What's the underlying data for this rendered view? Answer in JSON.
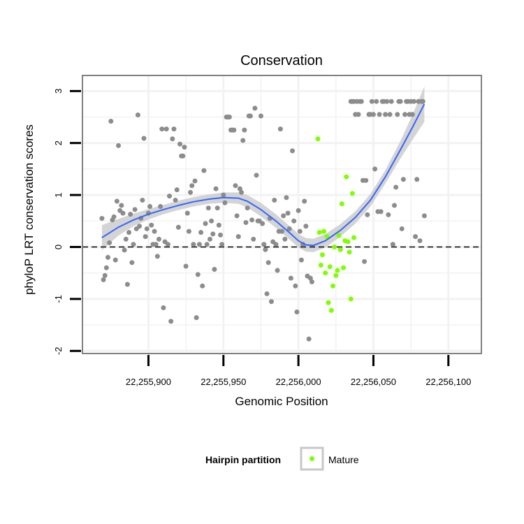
{
  "chart_data": {
    "type": "scatter",
    "title": "Conservation",
    "xlabel": "Genomic Position",
    "ylabel": "phyloP LRT conservation scores",
    "xlim": [
      22255856,
      22256122
    ],
    "ylim": [
      -2.05,
      3.3
    ],
    "x_ticks": [
      22255900,
      22255950,
      22256000,
      22256050,
      22256100
    ],
    "x_tick_labels": [
      "22,255,900",
      "22,255,950",
      "22,256,000",
      "22,256,050",
      "22,256,100"
    ],
    "y_ticks": [
      -2,
      -1,
      0,
      1,
      2,
      3
    ],
    "y_tick_labels": [
      "-2",
      "-1",
      "0",
      "1",
      "2",
      "3"
    ],
    "reference_line": {
      "y": 0,
      "style": "dashed",
      "color": "#000000"
    },
    "grid": true,
    "legend": {
      "title": "Hairpin partition",
      "position": "bottom",
      "entries": [
        {
          "label": "Mature",
          "color": "#80ff00"
        }
      ]
    },
    "colors": {
      "other_points": "#8c8c8c",
      "mature_points": "#80ff00",
      "smooth_line": "#3366ff",
      "confidence_band": "#cccccc",
      "panel_border": "#808080",
      "grid": "#f2f2f2"
    },
    "series": [
      {
        "partition": "other",
        "points": [
          [
            22255869,
            0.55
          ],
          [
            22255870,
            -0.63
          ],
          [
            22255871,
            -0.55
          ],
          [
            22255872,
            -0.4
          ],
          [
            22255873,
            -0.2
          ],
          [
            22255874,
            0.08
          ],
          [
            22255875,
            2.42
          ],
          [
            22255876,
            0.52
          ],
          [
            22255877,
            0.58
          ],
          [
            22255878,
            -0.25
          ],
          [
            22255879,
            0.88
          ],
          [
            22255880,
            1.95
          ],
          [
            22255881,
            0.7
          ],
          [
            22255882,
            0.8
          ],
          [
            22255883,
            0.65
          ],
          [
            22255884,
            -0.06
          ],
          [
            22255885,
            0.15
          ],
          [
            22255886,
            -0.72
          ],
          [
            22255887,
            0.28
          ],
          [
            22255888,
            0.63
          ],
          [
            22255889,
            -0.3
          ],
          [
            22255890,
            0.05
          ],
          [
            22255891,
            0.72
          ],
          [
            22255892,
            0.35
          ],
          [
            22255893,
            2.54
          ],
          [
            22255894,
            0.4
          ],
          [
            22255895,
            0.55
          ],
          [
            22255896,
            0.9
          ],
          [
            22255897,
            2.09
          ],
          [
            22255898,
            0.2
          ],
          [
            22255899,
            0.35
          ],
          [
            22255900,
            0.65
          ],
          [
            22255901,
            0.78
          ],
          [
            22255902,
            0.42
          ],
          [
            22255903,
            0.05
          ],
          [
            22255904,
            0.3
          ],
          [
            22255905,
            0.05
          ],
          [
            22255906,
            -0.18
          ],
          [
            22255907,
            0.15
          ],
          [
            22255908,
            0.78
          ],
          [
            22255909,
            2.27
          ],
          [
            22255910,
            -1.17
          ],
          [
            22255911,
            0.1
          ],
          [
            22255912,
            2.27
          ],
          [
            22255913,
            0.05
          ],
          [
            22255914,
            0.98
          ],
          [
            22255915,
            -1.43
          ],
          [
            22255916,
            2.08
          ],
          [
            22255917,
            2.27
          ],
          [
            22255918,
            0.9
          ],
          [
            22255919,
            1.1
          ],
          [
            22255920,
            0.38
          ],
          [
            22255921,
            1.98
          ],
          [
            22255922,
            1.75
          ],
          [
            22255923,
            1.75
          ],
          [
            22255924,
            1.92
          ],
          [
            22255925,
            -0.37
          ],
          [
            22255926,
            0.65
          ],
          [
            22255927,
            0.3
          ],
          [
            22255928,
            1.05
          ],
          [
            22255929,
            1.18
          ],
          [
            22255930,
            0.05
          ],
          [
            22255931,
            1.27
          ],
          [
            22255932,
            -1.36
          ],
          [
            22255933,
            -0.53
          ],
          [
            22255934,
            0.05
          ],
          [
            22255935,
            0.28
          ],
          [
            22255936,
            -0.75
          ],
          [
            22255937,
            1.47
          ],
          [
            22255938,
            0.45
          ],
          [
            22255939,
            0.05
          ],
          [
            22255940,
            0.75
          ],
          [
            22255941,
            0.15
          ],
          [
            22255942,
            0.5
          ],
          [
            22255943,
            0.25
          ],
          [
            22255944,
            -0.43
          ],
          [
            22255945,
            1.12
          ],
          [
            22255946,
            0.75
          ],
          [
            22255947,
            0.42
          ],
          [
            22255948,
            0.23
          ],
          [
            22255949,
            0.05
          ],
          [
            22255950,
            1.0
          ],
          [
            22255951,
            0.85
          ],
          [
            22255952,
            2.5
          ],
          [
            22255953,
            2.5
          ],
          [
            22255954,
            2.5
          ],
          [
            22255955,
            2.25
          ],
          [
            22255956,
            2.25
          ],
          [
            22255957,
            2.25
          ],
          [
            22255958,
            1.18
          ],
          [
            22255959,
            0.6
          ],
          [
            22255960,
            0.2
          ],
          [
            22255961,
            1.12
          ],
          [
            22255962,
            1.05
          ],
          [
            22255963,
            2.05
          ],
          [
            22255964,
            2.25
          ],
          [
            22255965,
            0.47
          ],
          [
            22255966,
            0.75
          ],
          [
            22255967,
            2.52
          ],
          [
            22255968,
            2.52
          ],
          [
            22255969,
            0.52
          ],
          [
            22255970,
            0.15
          ],
          [
            22255971,
            2.67
          ],
          [
            22255972,
            1.38
          ],
          [
            22255973,
            0.5
          ],
          [
            22255974,
            0.5
          ],
          [
            22255975,
            2.52
          ],
          [
            22255976,
            0.45
          ],
          [
            22255977,
            0.05
          ],
          [
            22255978,
            -0.05
          ],
          [
            22255979,
            -0.9
          ],
          [
            22255980,
            -0.3
          ],
          [
            22255981,
            0.55
          ],
          [
            22255982,
            -1.05
          ],
          [
            22255983,
            0.1
          ],
          [
            22255984,
            0.9
          ],
          [
            22255985,
            0.05
          ],
          [
            22255986,
            -0.45
          ],
          [
            22255987,
            0.3
          ],
          [
            22255988,
            2.27
          ],
          [
            22255989,
            0.3
          ],
          [
            22255990,
            0.6
          ],
          [
            22255991,
            0.15
          ],
          [
            22255992,
            0.95
          ],
          [
            22255993,
            0.65
          ],
          [
            22255994,
            0.35
          ],
          [
            22255995,
            -0.6
          ],
          [
            22255996,
            1.85
          ],
          [
            22255997,
            0.5
          ],
          [
            22255998,
            -0.75
          ],
          [
            22255999,
            -1.25
          ],
          [
            22256000,
            0.7
          ],
          [
            22256001,
            0.3
          ],
          [
            22256002,
            -0.25
          ],
          [
            22256003,
            0.05
          ],
          [
            22256004,
            0.88
          ],
          [
            22256005,
            0.4
          ],
          [
            22256006,
            -0.56
          ],
          [
            22256007,
            -1.77
          ],
          [
            22256008,
            -0.6
          ],
          [
            22256009,
            -0.67
          ],
          [
            22256035,
            2.8
          ],
          [
            22256036,
            2.8
          ],
          [
            22256037,
            2.8
          ],
          [
            22256038,
            2.55
          ],
          [
            22256039,
            2.8
          ],
          [
            22256040,
            2.55
          ],
          [
            22256041,
            2.8
          ],
          [
            22256042,
            2.8
          ],
          [
            22256043,
            1.28
          ],
          [
            22256044,
            -0.28
          ],
          [
            22256045,
            1.28
          ],
          [
            22256046,
            0.62
          ],
          [
            22256047,
            2.55
          ],
          [
            22256048,
            2.55
          ],
          [
            22256049,
            2.8
          ],
          [
            22256050,
            2.55
          ],
          [
            22256051,
            1.5
          ],
          [
            22256052,
            2.8
          ],
          [
            22256053,
            0.68
          ],
          [
            22256054,
            2.55
          ],
          [
            22256055,
            0.68
          ],
          [
            22256056,
            2.8
          ],
          [
            22256057,
            2.8
          ],
          [
            22256058,
            2.55
          ],
          [
            22256059,
            2.8
          ],
          [
            22256060,
            0.62
          ],
          [
            22256061,
            2.55
          ],
          [
            22256062,
            2.8
          ],
          [
            22256063,
            0.05
          ],
          [
            22256064,
            0.8
          ],
          [
            22256065,
            1.15
          ],
          [
            22256066,
            2.55
          ],
          [
            22256067,
            2.8
          ],
          [
            22256068,
            2.8
          ],
          [
            22256069,
            0.35
          ],
          [
            22256070,
            1.3
          ],
          [
            22256071,
            2.55
          ],
          [
            22256072,
            2.8
          ],
          [
            22256073,
            2.8
          ],
          [
            22256074,
            2.55
          ],
          [
            22256075,
            2.8
          ],
          [
            22256076,
            2.55
          ],
          [
            22256077,
            2.8
          ],
          [
            22256078,
            0.2
          ],
          [
            22256079,
            1.3
          ],
          [
            22256080,
            2.8
          ],
          [
            22256081,
            0.12
          ],
          [
            22256082,
            2.8
          ],
          [
            22256083,
            2.8
          ],
          [
            22256084,
            0.6
          ]
        ]
      },
      {
        "partition": "Mature",
        "points": [
          [
            22256013,
            2.08
          ],
          [
            22256014,
            0.28
          ],
          [
            22256015,
            -0.35
          ],
          [
            22256016,
            -0.15
          ],
          [
            22256017,
            0.3
          ],
          [
            22256018,
            -0.5
          ],
          [
            22256019,
            0.2
          ],
          [
            22256020,
            -1.07
          ],
          [
            22256021,
            -0.38
          ],
          [
            22256022,
            -1.22
          ],
          [
            22256023,
            -0.75
          ],
          [
            22256024,
            0.0
          ],
          [
            22256025,
            -0.55
          ],
          [
            22256026,
            -0.45
          ],
          [
            22256027,
            0.22
          ],
          [
            22256028,
            -0.05
          ],
          [
            22256029,
            0.83
          ],
          [
            22256030,
            -0.4
          ],
          [
            22256031,
            0.12
          ],
          [
            22256032,
            1.35
          ],
          [
            22256033,
            0.1
          ],
          [
            22256034,
            -0.1
          ],
          [
            22256035,
            -1.0
          ],
          [
            22256036,
            1.03
          ],
          [
            22256037,
            0.18
          ]
        ]
      }
    ],
    "smooth": {
      "method": "loess",
      "points": [
        [
          22255869,
          0.18
        ],
        [
          22255880,
          0.38
        ],
        [
          22255890,
          0.52
        ],
        [
          22255900,
          0.63
        ],
        [
          22255910,
          0.72
        ],
        [
          22255920,
          0.8
        ],
        [
          22255930,
          0.87
        ],
        [
          22255940,
          0.92
        ],
        [
          22255950,
          0.95
        ],
        [
          22255960,
          0.94
        ],
        [
          22255966,
          0.88
        ],
        [
          22255975,
          0.72
        ],
        [
          22255985,
          0.5
        ],
        [
          22255995,
          0.25
        ],
        [
          22256000,
          0.12
        ],
        [
          22256005,
          0.04
        ],
        [
          22256010,
          0.03
        ],
        [
          22256018,
          0.12
        ],
        [
          22256028,
          0.32
        ],
        [
          22256038,
          0.57
        ],
        [
          22256048,
          0.9
        ],
        [
          22256058,
          1.35
        ],
        [
          22256068,
          1.87
        ],
        [
          22256076,
          2.3
        ],
        [
          22256084,
          2.75
        ]
      ],
      "band_halfwidth": [
        0.24,
        0.16,
        0.12,
        0.1,
        0.09,
        0.09,
        0.09,
        0.09,
        0.1,
        0.11,
        0.12,
        0.13,
        0.13,
        0.13,
        0.13,
        0.13,
        0.13,
        0.13,
        0.12,
        0.12,
        0.12,
        0.13,
        0.17,
        0.24,
        0.34
      ]
    }
  }
}
